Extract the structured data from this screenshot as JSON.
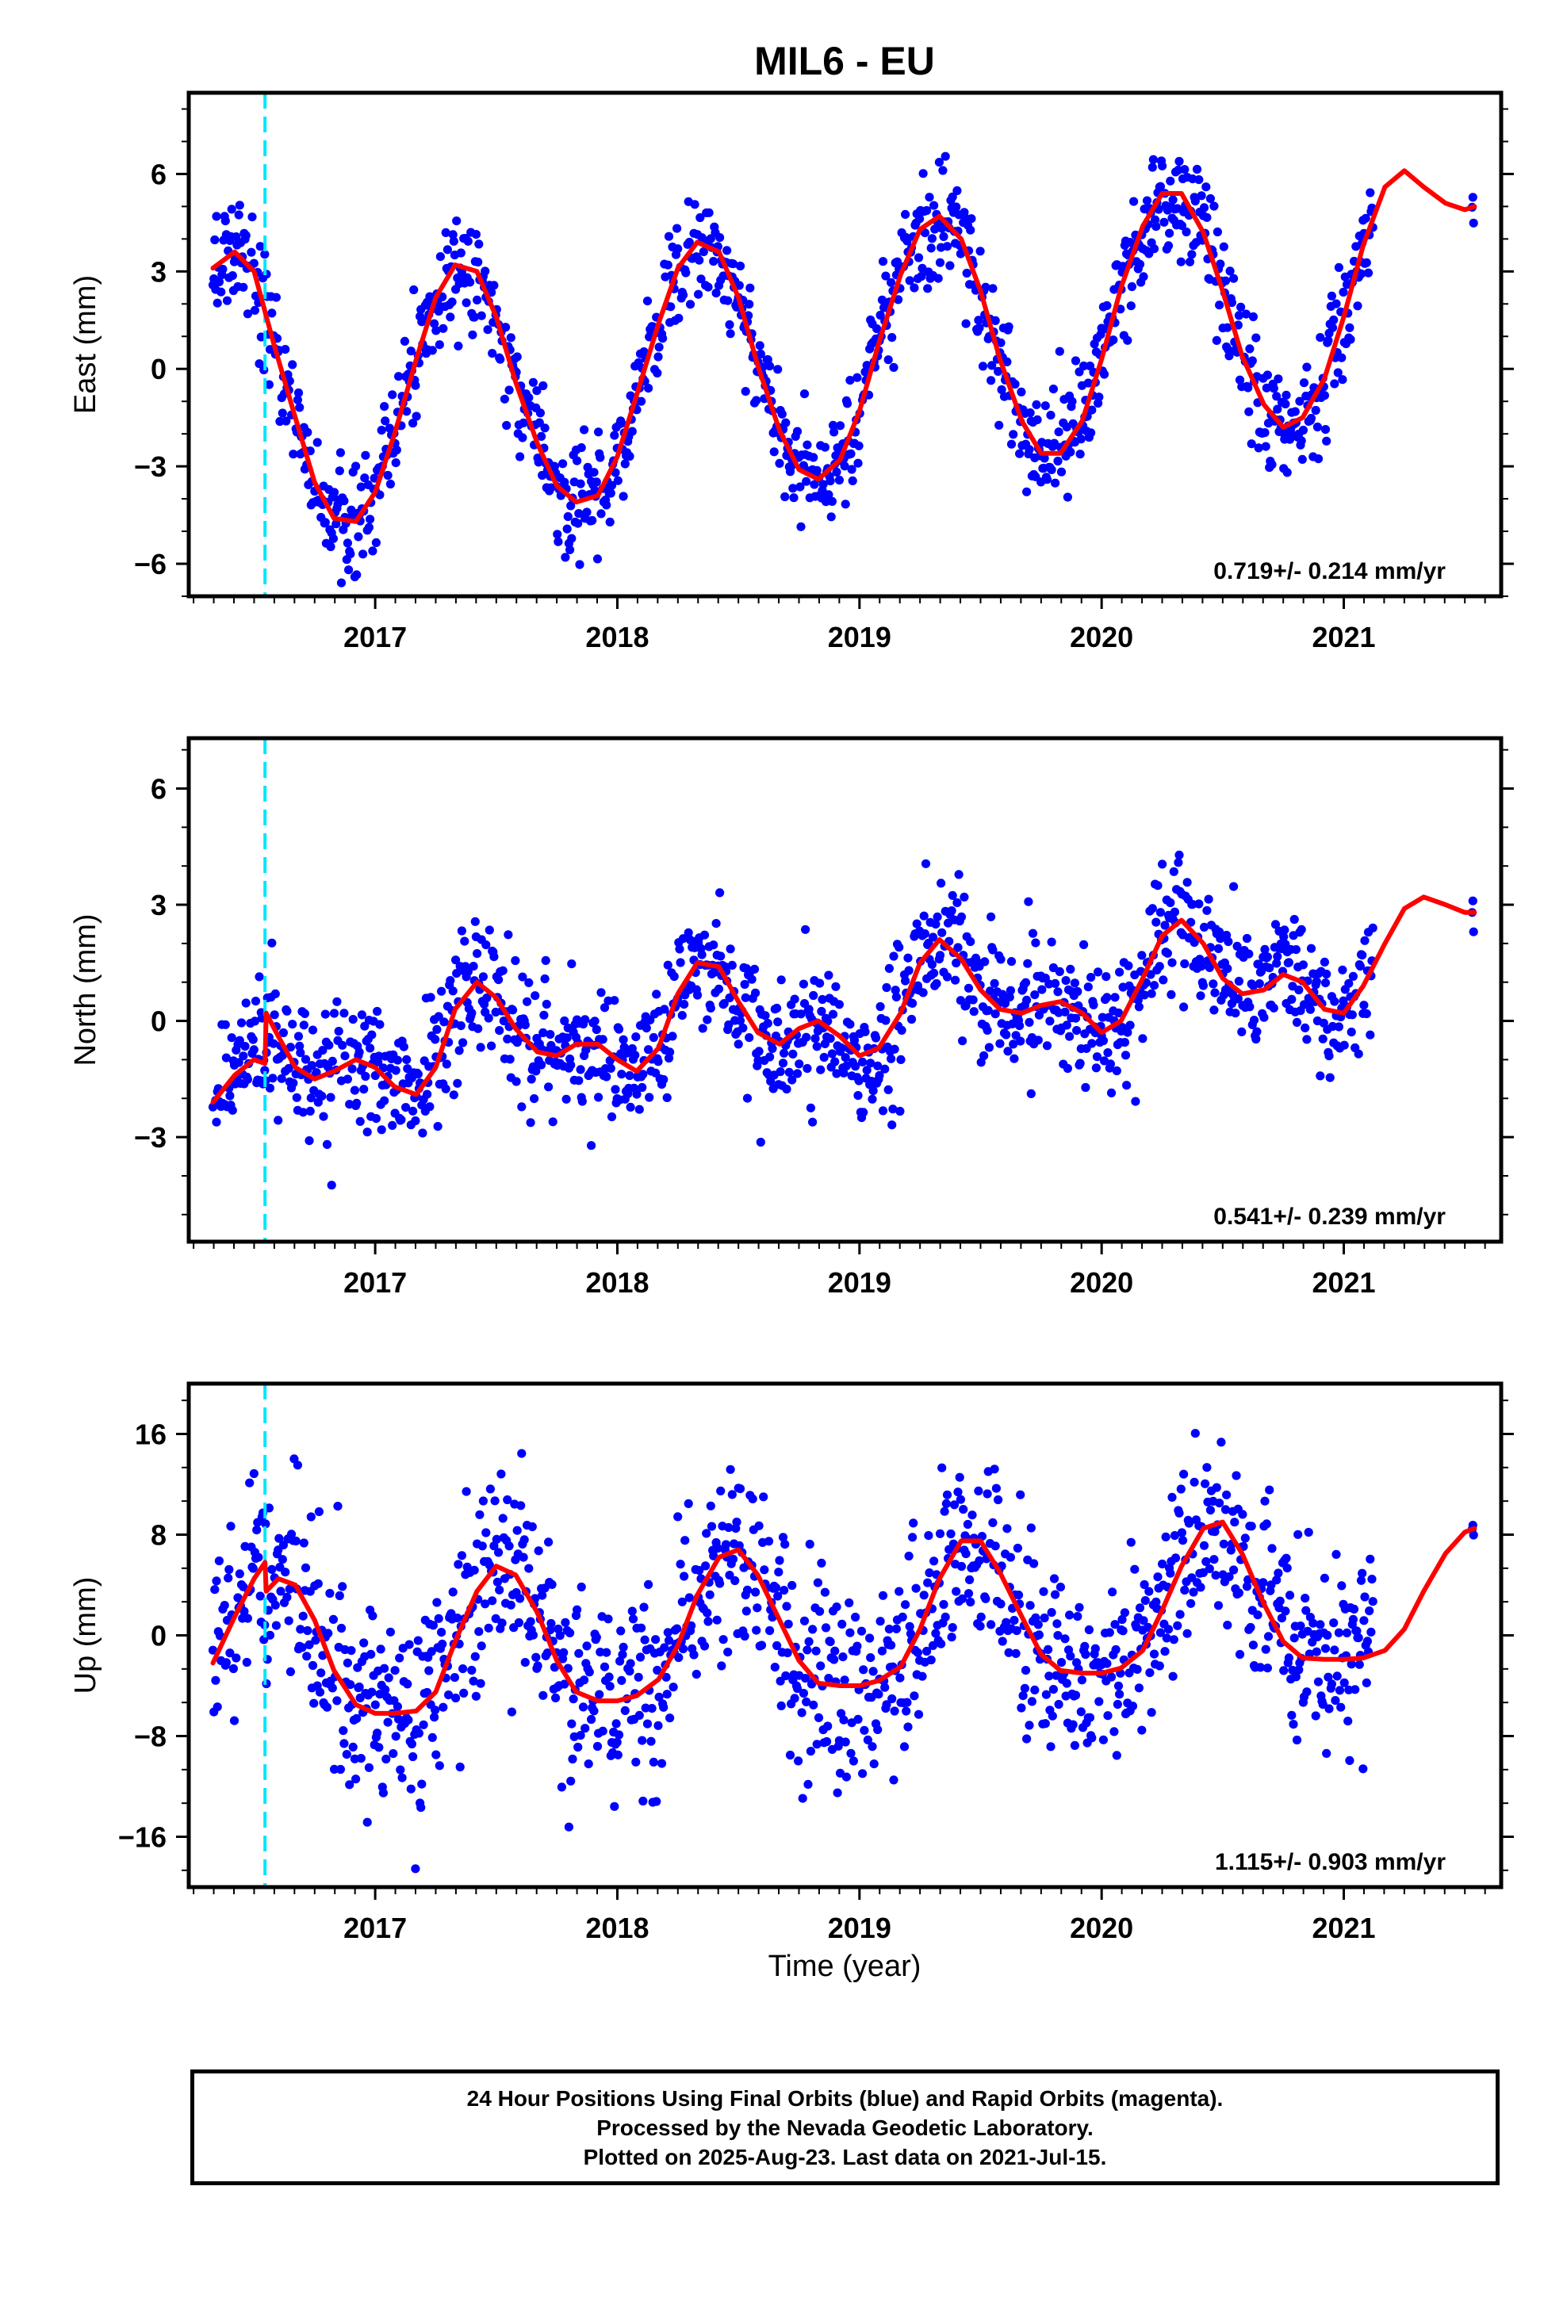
{
  "page_title": "MIL6 - EU",
  "x_axis_label": "Time (year)",
  "footer": {
    "lines": [
      "24 Hour Positions Using Final Orbits (blue) and Rapid Orbits (magenta).",
      "Processed by the Nevada Geodetic Laboratory.",
      "Plotted on 2025-Aug-23. Last data on 2021-Jul-15."
    ]
  },
  "colors": {
    "data": "#0000ff",
    "model": "#ff0000",
    "event_line": "#00e5ff",
    "frame": "#000000"
  },
  "chart_data": [
    {
      "type": "scatter",
      "title": "MIL6 - EU",
      "xlabel": "",
      "ylabel": "East (mm)",
      "xlim": [
        2016.23,
        2021.65
      ],
      "ylim": [
        -7.0,
        8.5
      ],
      "x_ticks": [
        2017,
        2018,
        2019,
        2020,
        2021
      ],
      "y_ticks": [
        -6,
        -3,
        0,
        3,
        6
      ],
      "grid": false,
      "event_line_x": 2016.545,
      "annotation": "0.719+/- 0.214 mm/yr",
      "model": {
        "name": "model",
        "x": [
          2016.33,
          2016.42,
          2016.5,
          2016.58,
          2016.67,
          2016.75,
          2016.83,
          2016.92,
          2017.0,
          2017.08,
          2017.17,
          2017.25,
          2017.33,
          2017.42,
          2017.5,
          2017.58,
          2017.67,
          2017.75,
          2017.83,
          2017.92,
          2018.0,
          2018.08,
          2018.17,
          2018.25,
          2018.33,
          2018.42,
          2018.5,
          2018.58,
          2018.67,
          2018.75,
          2018.83,
          2018.92,
          2019.0,
          2019.08,
          2019.17,
          2019.25,
          2019.33,
          2019.42,
          2019.5,
          2019.58,
          2019.67,
          2019.75,
          2019.83,
          2019.92,
          2020.0,
          2020.08,
          2020.17,
          2020.25,
          2020.33,
          2020.42,
          2020.5,
          2020.58,
          2020.67,
          2020.75,
          2020.83,
          2020.92,
          2021.0,
          2021.08,
          2021.17,
          2021.25,
          2021.33,
          2021.42,
          2021.5,
          2021.54
        ],
        "y": [
          3.1,
          3.6,
          3.0,
          0.8,
          -1.5,
          -3.5,
          -4.6,
          -4.7,
          -3.8,
          -2.0,
          0.3,
          2.2,
          3.2,
          3.0,
          1.6,
          -0.4,
          -2.3,
          -3.6,
          -4.1,
          -3.9,
          -2.7,
          -0.8,
          1.4,
          3.1,
          3.9,
          3.6,
          2.2,
          0.1,
          -1.9,
          -3.1,
          -3.4,
          -2.8,
          -1.3,
          0.8,
          2.9,
          4.3,
          4.7,
          4.0,
          2.4,
          0.3,
          -1.6,
          -2.6,
          -2.6,
          -1.6,
          0.3,
          2.5,
          4.4,
          5.4,
          5.4,
          4.2,
          2.4,
          0.4,
          -1.1,
          -1.8,
          -1.5,
          -0.3,
          1.6,
          3.8,
          5.6,
          6.1,
          5.6,
          5.1,
          4.9,
          5.0
        ]
      }
    },
    {
      "type": "scatter",
      "title": "",
      "xlabel": "",
      "ylabel": "North (mm)",
      "xlim": [
        2016.23,
        2021.65
      ],
      "ylim": [
        -5.7,
        7.3
      ],
      "x_ticks": [
        2017,
        2018,
        2019,
        2020,
        2021
      ],
      "y_ticks": [
        -3,
        0,
        3,
        6
      ],
      "grid": false,
      "event_line_x": 2016.545,
      "annotation": "0.541+/- 0.239 mm/yr",
      "model": {
        "name": "model",
        "x": [
          2016.33,
          2016.42,
          2016.5,
          2016.545,
          2016.55,
          2016.6,
          2016.67,
          2016.75,
          2016.83,
          2016.92,
          2017.0,
          2017.08,
          2017.17,
          2017.25,
          2017.33,
          2017.42,
          2017.5,
          2017.58,
          2017.67,
          2017.75,
          2017.83,
          2017.92,
          2018.0,
          2018.08,
          2018.17,
          2018.25,
          2018.33,
          2018.42,
          2018.5,
          2018.58,
          2018.67,
          2018.75,
          2018.83,
          2018.92,
          2019.0,
          2019.08,
          2019.17,
          2019.25,
          2019.33,
          2019.42,
          2019.5,
          2019.58,
          2019.67,
          2019.75,
          2019.83,
          2019.92,
          2020.0,
          2020.08,
          2020.17,
          2020.25,
          2020.33,
          2020.42,
          2020.5,
          2020.58,
          2020.67,
          2020.75,
          2020.83,
          2020.92,
          2021.0,
          2021.08,
          2021.17,
          2021.25,
          2021.33,
          2021.42,
          2021.5,
          2021.54
        ],
        "y": [
          -2.1,
          -1.4,
          -1.0,
          -1.1,
          0.2,
          -0.4,
          -1.2,
          -1.5,
          -1.3,
          -1.0,
          -1.2,
          -1.7,
          -1.9,
          -1.2,
          0.3,
          1.0,
          0.6,
          -0.2,
          -0.8,
          -0.9,
          -0.6,
          -0.6,
          -1.0,
          -1.3,
          -0.7,
          0.7,
          1.5,
          1.4,
          0.5,
          -0.3,
          -0.6,
          -0.2,
          0.0,
          -0.4,
          -0.9,
          -0.7,
          0.2,
          1.5,
          2.1,
          1.6,
          0.8,
          0.3,
          0.2,
          0.4,
          0.5,
          0.2,
          -0.3,
          0.0,
          1.1,
          2.2,
          2.6,
          2.0,
          1.1,
          0.7,
          0.8,
          1.2,
          1.0,
          0.3,
          0.2,
          0.9,
          2.0,
          2.9,
          3.2,
          3.0,
          2.8,
          2.8
        ]
      }
    },
    {
      "type": "scatter",
      "title": "",
      "xlabel": "Time (year)",
      "ylabel": "Up (mm)",
      "xlim": [
        2016.23,
        2021.65
      ],
      "ylim": [
        -20,
        20
      ],
      "x_ticks": [
        2017,
        2018,
        2019,
        2020,
        2021
      ],
      "y_ticks": [
        -16,
        -8,
        0,
        8,
        16
      ],
      "grid": false,
      "event_line_x": 2016.545,
      "annotation": "1.115+/- 0.903 mm/yr",
      "model": {
        "name": "model",
        "x": [
          2016.33,
          2016.42,
          2016.5,
          2016.545,
          2016.55,
          2016.6,
          2016.67,
          2016.75,
          2016.83,
          2016.92,
          2017.0,
          2017.08,
          2017.17,
          2017.25,
          2017.33,
          2017.42,
          2017.5,
          2017.58,
          2017.67,
          2017.75,
          2017.83,
          2017.92,
          2018.0,
          2018.08,
          2018.17,
          2018.25,
          2018.33,
          2018.42,
          2018.5,
          2018.58,
          2018.67,
          2018.75,
          2018.83,
          2018.92,
          2019.0,
          2019.08,
          2019.17,
          2019.25,
          2019.33,
          2019.42,
          2019.5,
          2019.58,
          2019.67,
          2019.75,
          2019.83,
          2019.92,
          2020.0,
          2020.08,
          2020.17,
          2020.25,
          2020.33,
          2020.42,
          2020.5,
          2020.58,
          2020.67,
          2020.75,
          2020.83,
          2020.92,
          2021.0,
          2021.08,
          2021.17,
          2021.25,
          2021.33,
          2021.42,
          2021.5,
          2021.54
        ],
        "y": [
          -2.2,
          1.5,
          4.5,
          5.8,
          3.5,
          4.5,
          4.0,
          1.2,
          -2.8,
          -5.5,
          -6.2,
          -6.2,
          -6.0,
          -4.5,
          -0.5,
          3.5,
          5.5,
          4.8,
          1.8,
          -2.0,
          -4.5,
          -5.2,
          -5.2,
          -4.8,
          -3.5,
          -0.8,
          3.2,
          6.2,
          6.8,
          4.8,
          1.2,
          -2.0,
          -3.8,
          -4.0,
          -4.0,
          -3.6,
          -2.5,
          0.5,
          4.5,
          7.5,
          7.5,
          5.0,
          1.5,
          -1.5,
          -2.8,
          -3.0,
          -3.0,
          -2.6,
          -1.2,
          2.0,
          5.5,
          8.5,
          9.0,
          6.5,
          2.5,
          -0.5,
          -1.8,
          -1.9,
          -1.9,
          -1.8,
          -1.2,
          0.5,
          3.5,
          6.5,
          8.2,
          8.5
        ]
      }
    }
  ]
}
